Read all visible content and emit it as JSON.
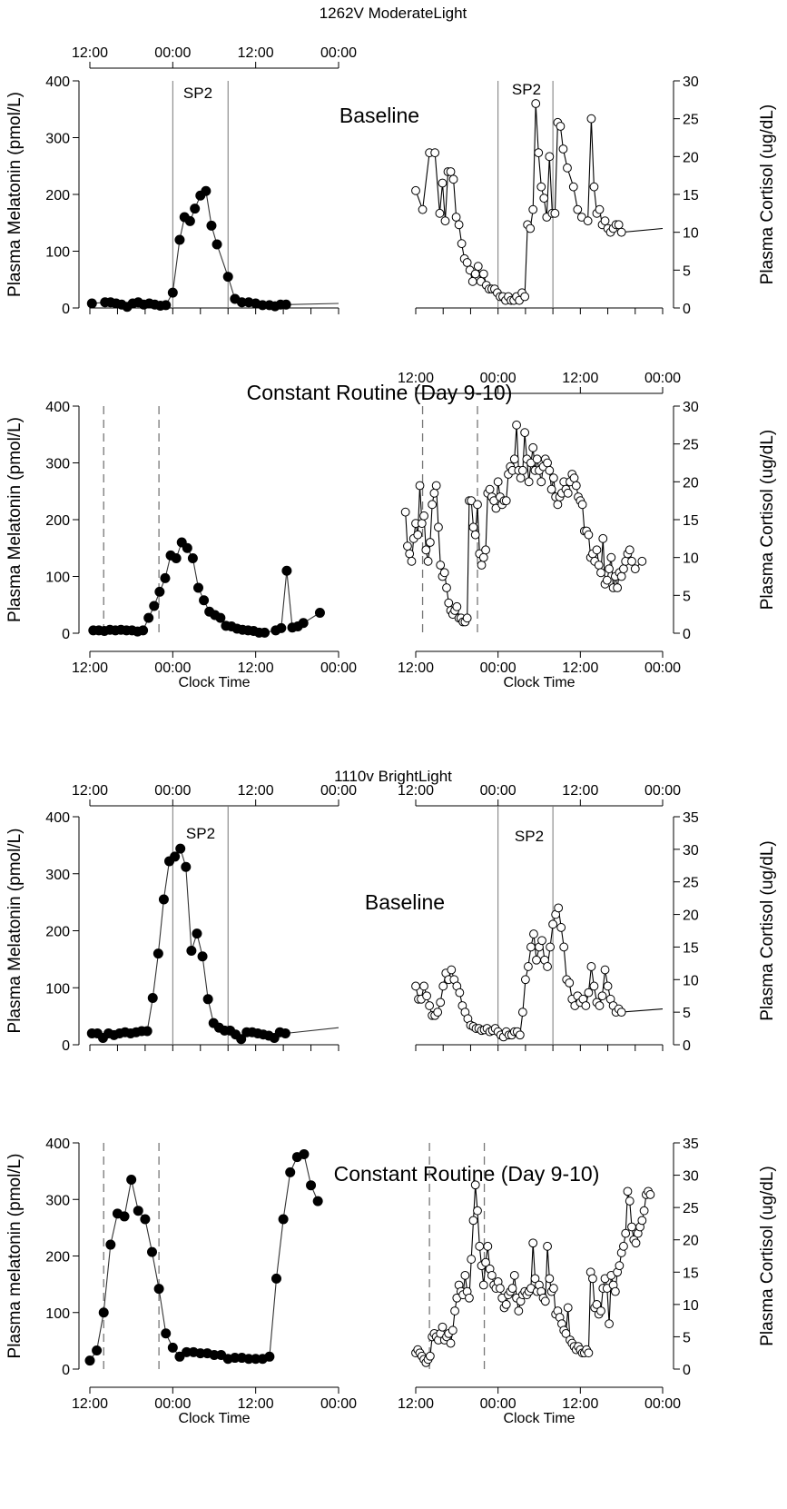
{
  "sections": [
    {
      "subject": "1262V ModerateLight",
      "baseline_title": "Baseline",
      "cr_title": "Constant Routine (Day 9-10)"
    },
    {
      "subject": "1110v BrightLight",
      "baseline_title": "Baseline",
      "cr_title": "Constant Routine (Day 9-10)"
    }
  ],
  "labels": {
    "melatonin_ylabel": "Plasma Melatonin (pmol/L)",
    "melatonin_ylabel_alt": "Plasma melatonin (pmol/L)",
    "cortisol_ylabel": "Plasma Cortisol (ug/dL)",
    "xlabel": "Clock Time",
    "sleep_label": "SP2"
  },
  "chart_data": [
    {
      "type": "line",
      "panel": "1262V baseline melatonin",
      "x_unit": "hours from 12:00 on first day",
      "x_tick_labels": [
        "12:00",
        "00:00",
        "12:00",
        "00:00"
      ],
      "x_ticks": [
        0,
        12,
        24,
        36
      ],
      "xlim": [
        0,
        36
      ],
      "ylabel": "Plasma Melatonin (pmol/L)",
      "ylim": [
        0,
        400
      ],
      "y_ticks": [
        0,
        100,
        200,
        300,
        400
      ],
      "vlines": [
        12,
        20
      ],
      "vline_label": "SP2",
      "marker": "filled",
      "x": [
        0.3,
        2.2,
        3.0,
        3.8,
        4.6,
        5.4,
        6.2,
        7.0,
        7.8,
        8.6,
        9.4,
        10.2,
        11.0,
        12.0,
        13.0,
        13.7,
        14.5,
        15.2,
        16.0,
        16.8,
        17.6,
        18.4,
        20.0,
        21.0,
        22.0,
        23.0,
        24.0,
        25.0,
        26.0,
        26.8,
        27.6,
        28.4,
        36.0
      ],
      "y": [
        8,
        10,
        10,
        8,
        6,
        2,
        8,
        10,
        6,
        8,
        6,
        4,
        5,
        27,
        120,
        160,
        153,
        175,
        198,
        206,
        145,
        112,
        55,
        16,
        10,
        10,
        8,
        5,
        5,
        3,
        6,
        6,
        8
      ]
    },
    {
      "type": "line",
      "panel": "1262V baseline cortisol",
      "x_unit": "hours from 12:00 on first day",
      "x_tick_labels": [
        "12:00",
        "00:00",
        "12:00",
        "00:00"
      ],
      "x_ticks": [
        0,
        12,
        24,
        36
      ],
      "xlim": [
        0,
        36
      ],
      "ylabel": "Plasma Cortisol (ug/dL)",
      "ylim": [
        0,
        30
      ],
      "y_ticks": [
        0,
        5,
        10,
        15,
        20,
        25,
        30
      ],
      "vlines": [
        12,
        20
      ],
      "vline_label": "SP2",
      "marker": "open",
      "x": [
        0.0,
        1.0,
        2.0,
        2.8,
        3.5,
        3.9,
        4.3,
        4.7,
        5.1,
        5.5,
        5.9,
        6.3,
        6.7,
        7.1,
        7.5,
        7.9,
        8.3,
        8.7,
        9.1,
        9.5,
        9.9,
        10.3,
        10.7,
        11.1,
        11.5,
        11.9,
        12.3,
        12.7,
        13.1,
        13.5,
        13.9,
        14.3,
        14.7,
        15.1,
        15.5,
        15.9,
        16.3,
        16.7,
        17.1,
        17.5,
        17.9,
        18.3,
        18.7,
        19.1,
        19.5,
        19.9,
        20.3,
        20.7,
        21.1,
        21.5,
        22.1,
        23.0,
        23.6,
        24.2,
        25.1,
        25.6,
        26.0,
        26.4,
        26.8,
        27.2,
        27.6,
        28.0,
        28.4,
        28.8,
        29.2,
        29.6,
        30.0,
        36.0
      ],
      "y": [
        15.5,
        13.0,
        20.5,
        20.5,
        12.5,
        16.5,
        11.5,
        18.0,
        18.0,
        17.0,
        12.0,
        11.0,
        8.5,
        6.5,
        6.0,
        5.0,
        3.5,
        4.5,
        5.5,
        3.5,
        4.5,
        3.0,
        2.5,
        2.5,
        2.5,
        2.0,
        1.5,
        1.5,
        1.0,
        1.5,
        1.0,
        1.0,
        1.5,
        1.0,
        2.0,
        1.5,
        11.0,
        10.5,
        13.0,
        27.0,
        20.5,
        16.0,
        14.5,
        12.0,
        20.0,
        12.5,
        12.5,
        24.5,
        24.0,
        21.0,
        18.5,
        16.0,
        13.0,
        12.0,
        11.5,
        25.0,
        16.0,
        12.5,
        13.0,
        11.0,
        11.5,
        10.5,
        10.0,
        10.5,
        11.0,
        11.0,
        10.0,
        10.5
      ]
    },
    {
      "type": "line",
      "panel": "1262V constant routine melatonin",
      "x_unit": "hours from 12:00 on first day",
      "x_tick_labels": [
        "12:00",
        "00:00",
        "12:00",
        "00:00"
      ],
      "x_ticks": [
        0,
        12,
        24,
        36
      ],
      "xlim": [
        0,
        36
      ],
      "xlabel": "Clock Time",
      "ylabel": "Plasma Melatonin (pmol/L)",
      "ylim": [
        0,
        400
      ],
      "y_ticks": [
        0,
        100,
        200,
        300,
        400
      ],
      "dashed_vlines": [
        2,
        10
      ],
      "marker": "filled",
      "x": [
        0.5,
        1.3,
        2.1,
        2.9,
        3.7,
        4.5,
        5.3,
        6.1,
        6.9,
        7.7,
        8.5,
        9.3,
        10.1,
        10.9,
        11.7,
        12.5,
        13.3,
        14.1,
        14.9,
        15.7,
        16.5,
        17.3,
        18.1,
        18.9,
        19.7,
        20.5,
        21.3,
        22.1,
        22.9,
        23.7,
        24.5,
        25.3,
        26.9,
        27.7,
        28.5,
        29.3,
        30.1,
        30.9,
        33.3
      ],
      "y": [
        5,
        5,
        4,
        6,
        5,
        6,
        5,
        5,
        3,
        5,
        27,
        48,
        73,
        97,
        137,
        132,
        160,
        150,
        132,
        80,
        58,
        38,
        32,
        27,
        13,
        12,
        8,
        6,
        5,
        4,
        1,
        1,
        5,
        9,
        110,
        10,
        12,
        18,
        36
      ]
    },
    {
      "type": "line",
      "panel": "1262V constant routine cortisol",
      "x_unit": "hours from 12:00 on first day",
      "x_tick_labels": [
        "12:00",
        "00:00",
        "12:00",
        "00:00"
      ],
      "x_ticks": [
        0,
        12,
        24,
        36
      ],
      "xlim": [
        0,
        36
      ],
      "xlabel": "Clock Time",
      "ylabel": "Plasma Cortisol (ug/dL)",
      "ylim": [
        0,
        30
      ],
      "y_ticks": [
        0,
        5,
        10,
        15,
        20,
        25,
        30
      ],
      "dashed_vlines": [
        1,
        9
      ],
      "marker": "open",
      "x": [
        -1.5,
        -1.2,
        -0.9,
        -0.6,
        -0.3,
        0.0,
        0.3,
        0.6,
        0.9,
        1.2,
        1.5,
        1.8,
        2.1,
        2.4,
        2.7,
        3.0,
        3.3,
        3.6,
        3.9,
        4.2,
        4.5,
        4.8,
        5.1,
        5.4,
        5.7,
        6.0,
        6.3,
        6.6,
        6.9,
        7.2,
        7.5,
        7.8,
        8.1,
        8.4,
        8.7,
        9.0,
        9.3,
        9.6,
        9.9,
        10.2,
        10.5,
        10.8,
        11.1,
        11.4,
        11.7,
        12.0,
        12.3,
        12.6,
        12.9,
        13.2,
        13.5,
        13.8,
        14.1,
        14.4,
        14.7,
        15.0,
        15.3,
        15.6,
        15.9,
        16.2,
        16.5,
        16.8,
        17.1,
        17.4,
        17.7,
        18.0,
        18.3,
        18.6,
        18.9,
        19.2,
        19.5,
        19.8,
        20.1,
        20.4,
        20.7,
        21.0,
        21.3,
        21.6,
        21.9,
        22.2,
        22.5,
        22.8,
        23.1,
        23.4,
        23.7,
        24.0,
        24.3,
        24.6,
        24.9,
        25.2,
        25.5,
        25.8,
        26.1,
        26.4,
        26.7,
        27.0,
        27.3,
        27.6,
        27.9,
        28.2,
        28.5,
        28.8,
        29.1,
        29.4,
        29.7,
        30.0,
        30.3,
        30.6,
        30.9,
        31.2,
        31.5,
        32.0,
        33.0
      ],
      "y": [
        16.0,
        11.5,
        10.5,
        9.5,
        12.5,
        14.5,
        13.0,
        19.5,
        14.5,
        15.5,
        11.0,
        9.5,
        12.0,
        17.0,
        18.5,
        19.5,
        14.0,
        9.0,
        7.5,
        8.0,
        6.0,
        4.0,
        3.0,
        2.5,
        3.0,
        3.5,
        2.0,
        2.0,
        1.5,
        1.5,
        2.0,
        17.5,
        17.5,
        14.0,
        13.0,
        17.0,
        10.5,
        9.0,
        10.0,
        11.0,
        18.5,
        19.0,
        18.0,
        17.5,
        16.5,
        20.0,
        18.0,
        17.0,
        17.5,
        17.5,
        21.0,
        22.0,
        21.5,
        23.0,
        27.5,
        21.5,
        20.5,
        21.5,
        26.5,
        23.0,
        20.0,
        22.5,
        24.5,
        21.5,
        23.0,
        21.5,
        20.0,
        22.0,
        23.0,
        22.5,
        21.5,
        19.0,
        20.5,
        18.0,
        17.0,
        18.0,
        18.5,
        20.0,
        19.0,
        18.5,
        20.0,
        21.0,
        20.5,
        19.5,
        18.0,
        17.5,
        17.0,
        13.5,
        13.5,
        13.0,
        10.0,
        10.5,
        9.5,
        11.0,
        9.0,
        8.0,
        12.5,
        6.5,
        7.0,
        8.5,
        10.0,
        6.0,
        7.5,
        6.0,
        8.0,
        7.5,
        8.5,
        9.5,
        10.5,
        11.0,
        9.5,
        8.5,
        9.5
      ]
    },
    {
      "type": "line",
      "panel": "1110v baseline melatonin",
      "x_unit": "hours from 12:00 on first day",
      "x_tick_labels": [
        "12:00",
        "00:00",
        "12:00",
        "00:00"
      ],
      "x_ticks": [
        0,
        12,
        24,
        36
      ],
      "xlim": [
        0,
        36
      ],
      "ylabel": "Plasma Melatonin (pmol/L)",
      "ylim": [
        0,
        400
      ],
      "y_ticks": [
        0,
        100,
        200,
        300,
        400
      ],
      "vlines": [
        12,
        20
      ],
      "vline_label": "SP2",
      "marker": "filled",
      "x": [
        0.3,
        1.1,
        1.9,
        2.7,
        3.5,
        4.3,
        5.1,
        5.9,
        6.7,
        7.5,
        8.3,
        9.1,
        9.9,
        10.7,
        11.5,
        12.3,
        13.1,
        13.9,
        14.7,
        15.5,
        16.3,
        17.1,
        17.9,
        18.7,
        19.5,
        20.3,
        21.1,
        21.9,
        22.7,
        23.5,
        24.3,
        25.1,
        25.9,
        26.7,
        27.5,
        28.3,
        36.0
      ],
      "y": [
        20,
        20,
        12,
        20,
        17,
        20,
        22,
        20,
        22,
        24,
        24,
        82,
        160,
        255,
        322,
        330,
        344,
        312,
        165,
        195,
        155,
        80,
        38,
        30,
        25,
        25,
        18,
        10,
        22,
        22,
        20,
        18,
        16,
        12,
        22,
        20,
        30
      ]
    },
    {
      "type": "line",
      "panel": "1110v baseline cortisol",
      "x_unit": "hours from 12:00 on first day",
      "x_tick_labels": [
        "12:00",
        "00:00",
        "12:00",
        "00:00"
      ],
      "x_ticks": [
        0,
        12,
        24,
        36
      ],
      "xlim": [
        0,
        36
      ],
      "ylabel": "Plasma Cortisol (ug/dL)",
      "ylim": [
        0,
        35
      ],
      "y_ticks": [
        0,
        5,
        10,
        15,
        20,
        25,
        30,
        35
      ],
      "vlines": [
        12,
        20
      ],
      "vline_label": "SP2",
      "marker": "open",
      "x": [
        0.0,
        0.4,
        0.8,
        1.2,
        1.6,
        2.0,
        2.4,
        2.8,
        3.2,
        3.6,
        4.0,
        4.4,
        4.8,
        5.2,
        5.6,
        6.0,
        6.4,
        6.8,
        7.2,
        7.6,
        8.0,
        8.4,
        8.8,
        9.2,
        9.6,
        10.0,
        10.4,
        10.8,
        11.2,
        11.6,
        12.0,
        12.4,
        12.8,
        13.2,
        13.6,
        14.0,
        14.4,
        14.8,
        15.2,
        15.6,
        16.0,
        16.4,
        16.8,
        17.2,
        17.6,
        18.0,
        18.4,
        18.8,
        19.2,
        19.6,
        20.0,
        20.4,
        20.8,
        21.2,
        21.6,
        22.0,
        22.4,
        22.8,
        23.2,
        23.6,
        24.0,
        24.4,
        24.8,
        25.2,
        25.6,
        26.0,
        26.4,
        26.8,
        27.2,
        27.6,
        28.0,
        28.4,
        28.8,
        29.2,
        29.6,
        30.0,
        36.0
      ],
      "y": [
        9.0,
        7.0,
        7.0,
        9.0,
        7.5,
        6.0,
        4.5,
        4.5,
        5.0,
        6.5,
        9.0,
        11.0,
        10.0,
        11.5,
        10.0,
        9.0,
        8.0,
        6.0,
        5.0,
        4.0,
        3.0,
        2.8,
        2.5,
        2.5,
        2.2,
        2.3,
        2.5,
        2.0,
        2.2,
        2.5,
        2.0,
        1.5,
        1.2,
        2.0,
        1.5,
        1.5,
        2.0,
        2.0,
        1.5,
        5.0,
        10.0,
        12.0,
        15.0,
        17.0,
        13.0,
        15.0,
        16.0,
        13.0,
        12.0,
        15.0,
        18.5,
        20.0,
        21.0,
        18.0,
        15.0,
        10.0,
        9.5,
        7.0,
        6.0,
        7.5,
        6.5,
        7.0,
        6.0,
        8.0,
        12.0,
        9.0,
        6.5,
        6.0,
        7.5,
        11.5,
        9.0,
        7.0,
        6.0,
        5.0,
        5.5,
        5.0,
        5.5
      ]
    },
    {
      "type": "line",
      "panel": "1110v constant routine melatonin",
      "x_unit": "hours from 12:00 on first day",
      "x_tick_labels": [
        "12:00",
        "00:00",
        "12:00",
        "00:00"
      ],
      "x_ticks": [
        0,
        12,
        24,
        36
      ],
      "xlim": [
        0,
        36
      ],
      "xlabel": "Clock Time",
      "ylabel": "Plasma melatonin (pmol/L)",
      "ylim": [
        0,
        400
      ],
      "y_ticks": [
        0,
        100,
        200,
        300,
        400
      ],
      "dashed_vlines": [
        2,
        10
      ],
      "marker": "filled",
      "x": [
        0.0,
        1.0,
        2.0,
        3.0,
        4.0,
        5.0,
        6.0,
        7.0,
        8.0,
        9.0,
        10.0,
        11.0,
        12.0,
        13.0,
        14.0,
        15.0,
        16.0,
        17.0,
        18.0,
        19.0,
        20.0,
        21.0,
        22.0,
        23.0,
        24.0,
        25.0,
        26.0,
        27.0,
        28.0,
        29.0,
        30.0,
        31.0,
        32.0,
        33.0
      ],
      "y": [
        15,
        33,
        100,
        220,
        275,
        270,
        335,
        280,
        265,
        207,
        142,
        63,
        38,
        22,
        30,
        30,
        28,
        28,
        25,
        25,
        18,
        20,
        20,
        18,
        18,
        18,
        22,
        160,
        265,
        348,
        375,
        380,
        325,
        297
      ]
    },
    {
      "type": "line",
      "panel": "1110v constant routine cortisol",
      "x_unit": "hours from 12:00 on first day",
      "x_tick_labels": [
        "12:00",
        "00:00",
        "12:00",
        "00:00"
      ],
      "x_ticks": [
        0,
        12,
        24,
        36
      ],
      "xlim": [
        0,
        36
      ],
      "xlabel": "Clock Time",
      "ylabel": "Plasma Cortisol (ug/dL)",
      "ylim": [
        0,
        35
      ],
      "y_ticks": [
        0,
        5,
        10,
        15,
        20,
        25,
        30,
        35
      ],
      "dashed_vlines": [
        2,
        10
      ],
      "marker": "open",
      "x": [
        0.0,
        0.3,
        0.6,
        0.9,
        1.2,
        1.5,
        1.8,
        2.1,
        2.4,
        2.7,
        3.0,
        3.3,
        3.6,
        3.9,
        4.2,
        4.5,
        4.8,
        5.1,
        5.4,
        5.7,
        6.0,
        6.3,
        6.6,
        6.9,
        7.2,
        7.5,
        7.8,
        8.1,
        8.4,
        8.7,
        9.0,
        9.3,
        9.6,
        9.9,
        10.2,
        10.5,
        10.8,
        11.1,
        11.4,
        11.7,
        12.0,
        12.3,
        12.6,
        12.9,
        13.2,
        13.5,
        13.8,
        14.1,
        14.4,
        14.7,
        15.0,
        15.3,
        15.6,
        15.9,
        16.2,
        16.5,
        16.8,
        17.1,
        17.4,
        17.7,
        18.0,
        18.3,
        18.6,
        18.9,
        19.2,
        19.5,
        19.8,
        20.1,
        20.4,
        20.7,
        21.0,
        21.3,
        21.6,
        21.9,
        22.2,
        22.5,
        22.8,
        23.1,
        23.4,
        23.7,
        24.0,
        24.3,
        24.6,
        24.9,
        25.2,
        25.5,
        25.8,
        26.1,
        26.4,
        26.7,
        27.0,
        27.3,
        27.6,
        27.9,
        28.2,
        28.5,
        28.8,
        29.1,
        29.4,
        29.7,
        30.0,
        30.3,
        30.6,
        30.9,
        31.2,
        31.5,
        31.8,
        32.1,
        32.4,
        32.7,
        33.0,
        33.3,
        33.6,
        33.9,
        34.2
      ],
      "y": [
        2.5,
        3.0,
        2.5,
        2.0,
        1.5,
        1.0,
        1.5,
        2.0,
        5.0,
        5.5,
        5.0,
        4.5,
        5.5,
        6.5,
        4.5,
        5.0,
        5.5,
        4.0,
        6.0,
        9.0,
        11.0,
        13.0,
        12.0,
        11.5,
        14.5,
        12.0,
        11.0,
        17.0,
        23.0,
        28.5,
        24.5,
        19.0,
        16.0,
        13.0,
        16.5,
        19.0,
        15.5,
        14.5,
        13.0,
        12.5,
        13.5,
        12.5,
        11.0,
        9.5,
        10.0,
        11.5,
        12.0,
        12.5,
        14.5,
        11.0,
        9.0,
        10.5,
        11.5,
        12.0,
        11.5,
        12.0,
        12.5,
        19.5,
        14.0,
        12.0,
        13.0,
        12.0,
        11.0,
        10.5,
        19.0,
        14.0,
        12.0,
        12.5,
        8.5,
        9.0,
        8.0,
        7.0,
        6.0,
        5.5,
        9.5,
        4.5,
        4.0,
        3.5,
        3.0,
        3.5,
        3.0,
        2.5,
        2.5,
        3.0,
        2.5,
        15.0,
        14.0,
        9.5,
        10.0,
        8.5,
        9.0,
        12.5,
        14.0,
        12.5,
        7.0,
        14.5,
        13.0,
        12.0,
        15.0,
        16.0,
        18.0,
        19.0,
        21.0,
        27.5,
        26.0,
        22.0,
        20.0,
        19.5,
        21.0,
        22.0,
        23.0,
        24.5,
        27.0,
        27.5,
        27.0
      ]
    }
  ]
}
